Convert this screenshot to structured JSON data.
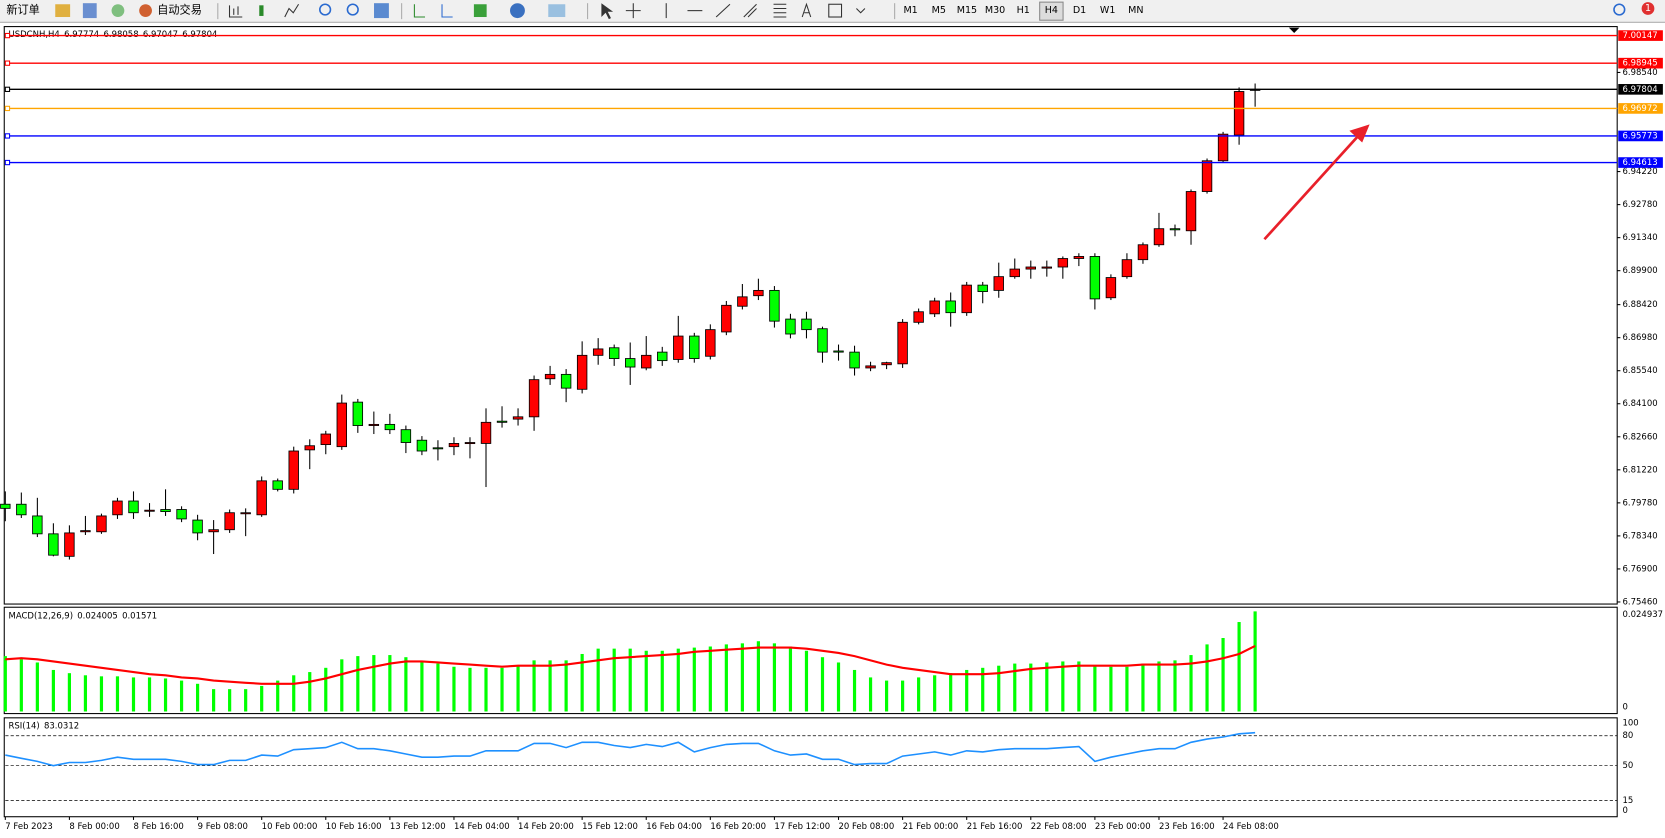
{
  "toolbar": {
    "new_order": "新订单",
    "auto_trading": "自动交易",
    "timeframes": [
      "M1",
      "M5",
      "M15",
      "M30",
      "H1",
      "H4",
      "D1",
      "W1",
      "MN"
    ],
    "active": "H4",
    "notification_count": 1
  },
  "chart_data": [
    {
      "type": "candlestick",
      "symbol": "USDCNH,H4",
      "up_color": "#ff0000",
      "down_color": "#00ff00",
      "categories": [
        "7 Feb 2023",
        null,
        null,
        null,
        "8 Feb 00:00",
        null,
        null,
        null,
        "8 Feb 16:00",
        null,
        null,
        null,
        "9 Feb 08:00",
        null,
        null,
        null,
        "10 Feb 00:00",
        null,
        null,
        null,
        "10 Feb 16:00",
        null,
        null,
        null,
        "13 Feb 12:00",
        null,
        null,
        null,
        "14 Feb 04:00",
        null,
        null,
        null,
        "14 Feb 20:00",
        null,
        null,
        null,
        "15 Feb 12:00",
        null,
        null,
        null,
        "16 Feb 04:00",
        null,
        null,
        null,
        "16 Feb 20:00",
        null,
        null,
        null,
        "17 Feb 12:00",
        null,
        null,
        null,
        "20 Feb 08:00",
        null,
        null,
        null,
        "21 Feb 00:00",
        null,
        null,
        null,
        "21 Feb 16:00",
        null,
        null,
        null,
        "22 Feb 08:00",
        null,
        null,
        null,
        "23 Feb 00:00",
        null,
        null,
        null,
        "23 Feb 16:00",
        null,
        null,
        null,
        "24 Feb 08:00",
        null,
        null
      ],
      "open": [
        6.7972,
        6.7972,
        6.7921,
        6.7843,
        6.7745,
        6.7852,
        6.7852,
        6.7926,
        6.7986,
        6.7945,
        6.7949,
        6.7949,
        6.7903,
        6.7852,
        6.7861,
        6.7931,
        6.7926,
        6.8074,
        6.8037,
        6.8209,
        6.8232,
        6.8223,
        6.8417,
        6.8315,
        6.832,
        6.8297,
        6.8251,
        6.8218,
        6.8223,
        6.8237,
        6.8237,
        6.8334,
        6.8343,
        6.8353,
        6.8519,
        6.8538,
        6.8473,
        6.8621,
        6.8654,
        6.8607,
        6.8566,
        6.8635,
        6.8603,
        6.8705,
        6.8617,
        6.8723,
        6.8835,
        6.8881,
        6.8904,
        6.8779,
        6.8779,
        6.8737,
        6.864,
        6.8635,
        6.8566,
        6.858,
        6.8584,
        6.8765,
        6.8802,
        6.8858,
        6.8807,
        6.8927,
        6.8904,
        6.8964,
        6.8997,
        6.9001,
        6.9006,
        6.9043,
        6.9052,
        6.8872,
        6.8964,
        6.9038,
        6.9103,
        6.9173,
        6.9164,
        6.9335,
        6.9469,
        6.9581,
        6.97774
      ],
      "high": [
        6.8028,
        6.8023,
        6.8,
        6.7889,
        6.788,
        6.7921,
        6.7931,
        6.8,
        6.8028,
        6.7977,
        6.8037,
        6.7963,
        6.7926,
        6.7903,
        6.7949,
        6.7954,
        6.8093,
        6.8084,
        6.8223,
        6.8255,
        6.8292,
        6.845,
        6.8431,
        6.8376,
        6.8366,
        6.8315,
        6.8269,
        6.8251,
        6.8264,
        6.8264,
        6.839,
        6.8399,
        6.839,
        6.8533,
        6.8575,
        6.8561,
        6.8682,
        6.8696,
        6.8668,
        6.8677,
        6.8705,
        6.8658,
        6.8793,
        6.8719,
        6.8756,
        6.8858,
        6.8932,
        6.8955,
        6.8923,
        6.8802,
        6.8811,
        6.8746,
        6.8668,
        6.8663,
        6.8593,
        6.8593,
        6.8779,
        6.8825,
        6.8872,
        6.8895,
        6.8941,
        6.8941,
        6.9025,
        6.9043,
        6.9034,
        6.9034,
        6.9052,
        6.9066,
        6.9066,
        6.8974,
        6.9066,
        6.9113,
        6.9242,
        6.9191,
        6.9344,
        6.9479,
        6.9595,
        6.9789,
        6.98058
      ],
      "low": [
        6.7898,
        6.7912,
        6.7829,
        6.7745,
        6.7731,
        6.7838,
        6.7843,
        6.7908,
        6.7908,
        6.7917,
        6.7921,
        6.7894,
        6.7815,
        6.7755,
        6.7847,
        6.7833,
        6.7917,
        6.8028,
        6.8019,
        6.8125,
        6.819,
        6.8209,
        6.8283,
        6.8278,
        6.8278,
        6.8195,
        6.8186,
        6.8163,
        6.8186,
        6.8172,
        6.8047,
        6.8306,
        6.8315,
        6.8292,
        6.8492,
        6.8417,
        6.8455,
        6.858,
        6.8575,
        6.8492,
        6.8556,
        6.8575,
        6.8589,
        6.8589,
        6.8603,
        6.8709,
        6.8821,
        6.8862,
        6.8742,
        6.8695,
        6.8695,
        6.8589,
        6.8598,
        6.8533,
        6.8552,
        6.8561,
        6.8566,
        6.8756,
        6.8788,
        6.8746,
        6.8793,
        6.8848,
        6.8872,
        6.8955,
        6.8955,
        6.8964,
        6.8955,
        6.901,
        6.8821,
        6.8862,
        6.8955,
        6.902,
        6.9094,
        6.914,
        6.9103,
        6.9326,
        6.946,
        6.9539,
        6.97047
      ],
      "close": [
        6.7954,
        6.7926,
        6.7843,
        6.775,
        6.7847,
        6.7857,
        6.7921,
        6.7986,
        6.7935,
        6.7946,
        6.794,
        6.7908,
        6.7847,
        6.7861,
        6.7935,
        6.7935,
        6.8074,
        6.8037,
        6.8204,
        6.8227,
        6.8278,
        6.8413,
        6.8315,
        6.832,
        6.8297,
        6.8241,
        6.8204,
        6.8216,
        6.8237,
        6.8241,
        6.8329,
        6.8329,
        6.8353,
        6.8515,
        6.8538,
        6.8478,
        6.8621,
        6.8649,
        6.8607,
        6.857,
        6.8621,
        6.8598,
        6.8705,
        6.8607,
        6.8733,
        6.8839,
        6.8876,
        6.8904,
        6.877,
        6.8714,
        6.8733,
        6.8635,
        6.8635,
        6.8566,
        6.8575,
        6.8589,
        6.8765,
        6.8811,
        6.8858,
        6.8807,
        6.8927,
        6.8899,
        6.8964,
        6.8997,
        6.9006,
        6.9006,
        6.9043,
        6.9052,
        6.8867,
        6.896,
        6.9038,
        6.9103,
        6.9173,
        6.9168,
        6.9335,
        6.9469,
        6.9585,
        6.9771,
        6.97804
      ],
      "ylim": [
        6.7537,
        7.004
      ],
      "yticks": [
        {
          "value": 6.7546,
          "label": "6.75460"
        },
        {
          "value": 6.769,
          "label": "6.76900"
        },
        {
          "value": 6.7834,
          "label": "6.78340"
        },
        {
          "value": 6.7978,
          "label": "6.79780"
        },
        {
          "value": 6.8122,
          "label": "6.81220"
        },
        {
          "value": 6.8266,
          "label": "6.82660"
        },
        {
          "value": 6.841,
          "label": "6.84100"
        },
        {
          "value": 6.8554,
          "label": "6.85540"
        },
        {
          "value": 6.8698,
          "label": "6.86980"
        },
        {
          "value": 6.8842,
          "label": "6.88420"
        },
        {
          "value": 6.899,
          "label": "6.89900"
        },
        {
          "value": 6.9134,
          "label": "6.91340"
        },
        {
          "value": 6.9278,
          "label": "6.92780"
        },
        {
          "value": 6.9422,
          "label": "6.94220"
        },
        {
          "value": 6.9854,
          "label": "6.98540"
        }
      ],
      "levels": [
        {
          "value": 7.00147,
          "color": "#ff0000"
        },
        {
          "value": 6.98945,
          "color": "#ff0000"
        },
        {
          "value": 6.97804,
          "color": "#000000"
        },
        {
          "value": 6.96972,
          "color": "#ffa500"
        },
        {
          "value": 6.95773,
          "color": "#0000ff"
        },
        {
          "value": 6.94613,
          "color": "#0000ff"
        }
      ]
    },
    {
      "type": "macd",
      "label": "MACD(12,26,9)",
      "color": "#00ff00",
      "signal_color": "#ff0000",
      "macd": [
        0.01328,
        0.01251,
        0.01175,
        0.00996,
        0.00919,
        0.00868,
        0.00843,
        0.00843,
        0.00817,
        0.00817,
        0.00792,
        0.00741,
        0.00664,
        0.00536,
        0.00536,
        0.00536,
        0.00613,
        0.00741,
        0.00868,
        0.00945,
        0.01047,
        0.01251,
        0.01328,
        0.01353,
        0.01353,
        0.01302,
        0.012,
        0.01149,
        0.01073,
        0.01047,
        0.01047,
        0.01047,
        0.01098,
        0.01226,
        0.01226,
        0.01226,
        0.01379,
        0.01507,
        0.01507,
        0.01507,
        0.01456,
        0.01456,
        0.01507,
        0.01532,
        0.01558,
        0.01609,
        0.01634,
        0.01685,
        0.01634,
        0.01558,
        0.01456,
        0.01302,
        0.01175,
        0.00996,
        0.00817,
        0.00741,
        0.00741,
        0.00817,
        0.00868,
        0.00919,
        0.00996,
        0.01047,
        0.01098,
        0.01149,
        0.01149,
        0.01175,
        0.012,
        0.012,
        0.01098,
        0.01073,
        0.01073,
        0.01149,
        0.012,
        0.01226,
        0.01353,
        0.01609,
        0.01762,
        0.02145,
        0.024005
      ],
      "signal": [
        0.01251,
        0.01277,
        0.01251,
        0.012,
        0.01149,
        0.01098,
        0.01047,
        0.00996,
        0.00945,
        0.00894,
        0.00868,
        0.00817,
        0.00792,
        0.00741,
        0.00715,
        0.00689,
        0.00664,
        0.00664,
        0.00664,
        0.00715,
        0.00792,
        0.00894,
        0.00996,
        0.01073,
        0.01149,
        0.012,
        0.012,
        0.01175,
        0.01149,
        0.01124,
        0.01098,
        0.01073,
        0.01098,
        0.01098,
        0.01098,
        0.01124,
        0.01175,
        0.01226,
        0.01277,
        0.01302,
        0.01328,
        0.01353,
        0.01379,
        0.0143,
        0.01456,
        0.01481,
        0.01507,
        0.01532,
        0.01532,
        0.01532,
        0.01507,
        0.01456,
        0.01404,
        0.01328,
        0.01226,
        0.01124,
        0.01047,
        0.00996,
        0.00945,
        0.00894,
        0.00894,
        0.00894,
        0.00919,
        0.0097,
        0.01021,
        0.01047,
        0.01073,
        0.01098,
        0.01098,
        0.01098,
        0.01098,
        0.01124,
        0.01124,
        0.01124,
        0.01149,
        0.012,
        0.01277,
        0.01379,
        0.01571
      ],
      "ylim": [
        -0.0005,
        0.025
      ],
      "yticks": [
        0,
        0.024937
      ]
    },
    {
      "type": "rsi",
      "label": "RSI(14)",
      "color": "#1e90ff",
      "values": [
        60.6,
        57.4,
        54.3,
        50.0,
        53.2,
        53.2,
        55.3,
        58.5,
        56.4,
        56.4,
        56.4,
        54.3,
        51.1,
        51.1,
        55.3,
        55.3,
        60.6,
        59.6,
        66.0,
        67.0,
        68.1,
        73.4,
        67.0,
        67.0,
        64.9,
        61.7,
        58.5,
        58.5,
        59.6,
        59.6,
        64.9,
        64.9,
        64.9,
        72.3,
        72.3,
        68.1,
        73.4,
        73.4,
        70.2,
        68.1,
        71.3,
        69.1,
        73.4,
        63.8,
        68.1,
        71.3,
        72.3,
        72.3,
        64.9,
        60.6,
        61.7,
        56.4,
        56.4,
        51.1,
        52.1,
        52.1,
        59.6,
        61.7,
        63.8,
        60.6,
        64.9,
        63.8,
        66.0,
        67.0,
        67.0,
        67.0,
        68.1,
        69.1,
        54.3,
        58.5,
        61.7,
        64.9,
        67.0,
        67.0,
        73.4,
        76.6,
        78.7,
        81.9,
        83.0312
      ],
      "ylim": [
        0,
        100
      ],
      "yticks": [
        0,
        15,
        50,
        80,
        100
      ],
      "levels": [
        15,
        50,
        80
      ]
    }
  ]
}
